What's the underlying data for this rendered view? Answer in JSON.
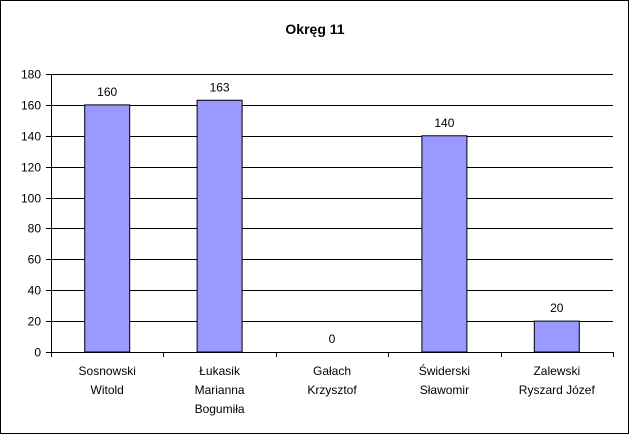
{
  "chart_data": {
    "type": "bar",
    "title": "Okręg 11",
    "categories": [
      [
        "Sosnowski",
        "Witold"
      ],
      [
        "Łukasik",
        "Marianna",
        "Bogumiła"
      ],
      [
        "Gałach",
        "Krzysztof"
      ],
      [
        "Świderski",
        "Sławomir"
      ],
      [
        "Zalewski",
        "Ryszard Józef"
      ]
    ],
    "values": [
      160,
      163,
      0,
      140,
      20
    ],
    "data_labels": [
      "160",
      "163",
      "0",
      "140",
      "20"
    ],
    "ylim": [
      0,
      180
    ],
    "yticks": [
      0,
      20,
      40,
      60,
      80,
      100,
      120,
      140,
      160,
      180
    ],
    "grid": true,
    "legend": "none",
    "colors": {
      "bar_fill": "#9999ff",
      "bar_stroke": "#000000",
      "grid": "#000000",
      "background": "#ffffff"
    }
  }
}
